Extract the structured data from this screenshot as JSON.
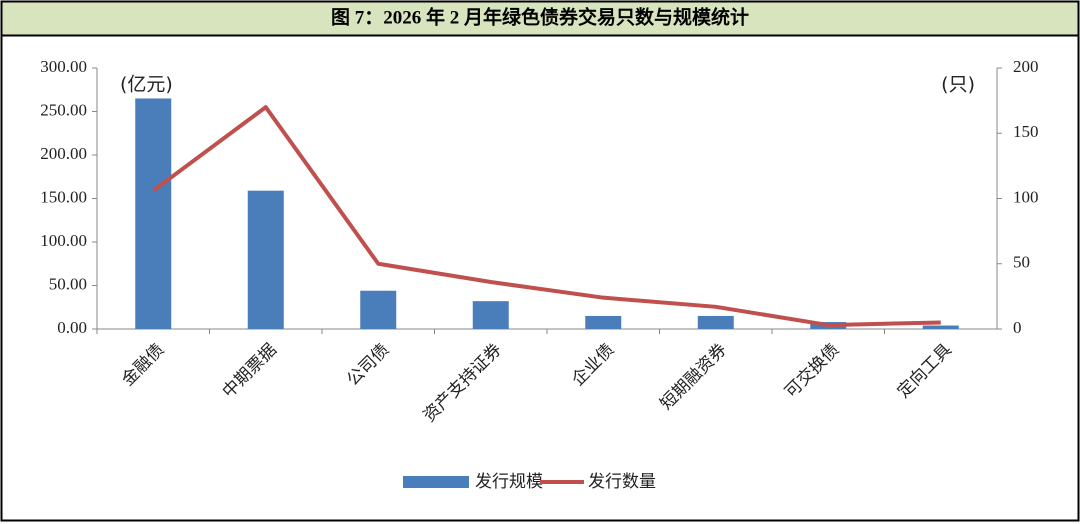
{
  "chart_data": {
    "type": "bar_line",
    "title": "图 7：2026 年 2 月年绿色债券交易只数与规模统计",
    "y_unit": "(亿元)",
    "y2_unit": "(只)",
    "categories": [
      "金融债",
      "中期票据",
      "公司债",
      "资产支持证券",
      "企业债",
      "短期融资券",
      "可交换债",
      "定向工具"
    ],
    "series": [
      {
        "name": "发行规模",
        "color": "#4a7ebb",
        "type": "bar",
        "values": [
          265,
          159,
          44,
          32,
          15,
          15,
          8,
          4
        ]
      },
      {
        "name": "发行数量",
        "color": "#c0504d",
        "type": "line",
        "axis": "y2",
        "values": [
          106,
          170,
          50,
          36,
          24,
          17,
          3,
          5
        ]
      }
    ],
    "ylim": [
      0,
      300
    ],
    "yticks": [
      {
        "value": 0,
        "label": "0.00"
      },
      {
        "value": 50,
        "label": "50.00"
      },
      {
        "value": 100,
        "label": "100.00"
      },
      {
        "value": 150,
        "label": "150.00"
      },
      {
        "value": 200,
        "label": "200.00"
      },
      {
        "value": 250,
        "label": "250.00"
      },
      {
        "value": 300,
        "label": "300.00"
      }
    ],
    "y2lim": [
      0,
      200
    ],
    "y2ticks": [
      0,
      50,
      100,
      150,
      200
    ],
    "legend": "bottom"
  }
}
